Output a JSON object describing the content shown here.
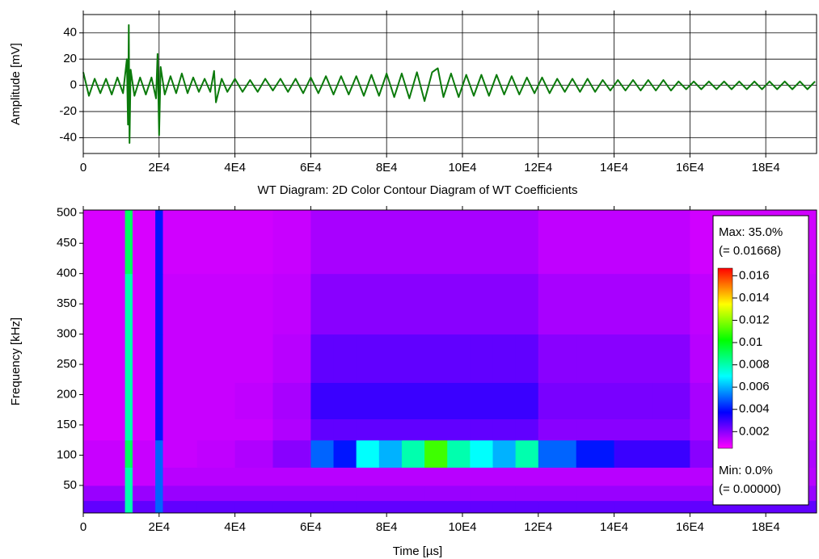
{
  "chart_data": [
    {
      "type": "line",
      "y_label": "Amplitude [mV]",
      "xlim": [
        0,
        193400
      ],
      "ylim": [
        -52,
        54
      ],
      "xticks": [
        0,
        {
          "value": 20000,
          "label": "2E4"
        },
        {
          "value": 40000,
          "label": "4E4"
        },
        {
          "value": 60000,
          "label": "6E4"
        },
        {
          "value": 80000,
          "label": "8E4"
        },
        {
          "value": 100000,
          "label": "10E4"
        },
        {
          "value": 120000,
          "label": "12E4"
        },
        {
          "value": 140000,
          "label": "14E4"
        },
        {
          "value": 160000,
          "label": "16E4"
        },
        {
          "value": 180000,
          "label": "18E4"
        }
      ],
      "yticks": [
        -40,
        -20,
        0,
        20,
        40
      ],
      "grid": true,
      "x": [
        0,
        1500,
        3000,
        4500,
        6000,
        7500,
        9000,
        10500,
        11500,
        11800,
        12000,
        12200,
        12500,
        13500,
        15000,
        16500,
        18000,
        19200,
        19600,
        20000,
        20400,
        21500,
        23000,
        24500,
        26000,
        27500,
        29000,
        30500,
        32000,
        33500,
        34500,
        35000,
        36500,
        38000,
        40000,
        42000,
        44000,
        46000,
        48000,
        50000,
        52000,
        54000,
        56000,
        58000,
        60000,
        62000,
        64000,
        66000,
        68000,
        70000,
        72000,
        74000,
        76000,
        78000,
        80000,
        82000,
        84000,
        86000,
        88000,
        90000,
        92000,
        93500,
        95000,
        97000,
        99000,
        101000,
        103000,
        105000,
        107000,
        109000,
        111000,
        113000,
        115000,
        117000,
        119000,
        121000,
        123000,
        125000,
        127000,
        129000,
        131000,
        133000,
        135000,
        137000,
        139000,
        141000,
        143000,
        145000,
        147000,
        149000,
        151000,
        153000,
        155000,
        157000,
        159000,
        161000,
        163000,
        165000,
        167000,
        169000,
        171000,
        173000,
        175000,
        177000,
        179000,
        181000,
        183000,
        185000,
        187000,
        189000,
        191000,
        193000
      ],
      "series": [
        {
          "color": "#0b7a0b",
          "values": [
            10,
            -8,
            5,
            -6,
            5,
            -7,
            6,
            -6,
            20,
            -30,
            46,
            -44,
            12,
            -8,
            6,
            -7,
            6,
            -10,
            24,
            -38,
            14,
            -7,
            7,
            -6,
            9,
            -6,
            6,
            -5,
            5,
            -5,
            11,
            -13,
            5,
            -5,
            5,
            -5,
            4,
            -5,
            5,
            -4,
            5,
            -5,
            5,
            -6,
            6,
            -6,
            7,
            -7,
            7,
            -7,
            7,
            -8,
            8,
            -8,
            9,
            -9,
            9,
            -10,
            10,
            -12,
            10,
            13,
            -9,
            9,
            -9,
            8,
            -8,
            8,
            -8,
            8,
            -7,
            7,
            -7,
            6,
            -6,
            6,
            -6,
            5,
            -5,
            5,
            -5,
            5,
            -5,
            4,
            -4,
            4,
            -4,
            4,
            -4,
            4,
            -4,
            4,
            -4,
            3,
            -3,
            3,
            -3,
            3,
            -3,
            3,
            -3,
            3,
            -3,
            3,
            -3,
            3,
            -3,
            3,
            -3,
            3,
            -3,
            3
          ]
        }
      ]
    },
    {
      "type": "heatmap",
      "title": "WT Diagram: 2D Color Contour Diagram of WT Coefficients",
      "x_label": "Time [µs]",
      "y_label": "Frequency [kHz]",
      "xlim": [
        0,
        193400
      ],
      "ylim": [
        4.5,
        505
      ],
      "xticks": [
        0,
        {
          "value": 20000,
          "label": "2E4"
        },
        {
          "value": 40000,
          "label": "4E4"
        },
        {
          "value": 60000,
          "label": "6E4"
        },
        {
          "value": 80000,
          "label": "8E4"
        },
        {
          "value": 100000,
          "label": "10E4"
        },
        {
          "value": 120000,
          "label": "12E4"
        },
        {
          "value": 140000,
          "label": "14E4"
        },
        {
          "value": 160000,
          "label": "16E4"
        },
        {
          "value": 180000,
          "label": "18E4"
        }
      ],
      "yticks": [
        50,
        100,
        150,
        200,
        250,
        300,
        350,
        400,
        450,
        500
      ],
      "grid": false,
      "x_edges": [
        0,
        11000,
        13000,
        19000,
        21000,
        30000,
        40000,
        50000,
        60000,
        66000,
        72000,
        78000,
        84000,
        90000,
        96000,
        102000,
        108000,
        114000,
        120000,
        130000,
        140000,
        150000,
        160000,
        175000,
        193400
      ],
      "y_edges": [
        4.5,
        25,
        50,
        80,
        125,
        160,
        220,
        300,
        400,
        505
      ],
      "z": [
        [
          0.0025,
          0.008,
          0.0025,
          0.005,
          0.0025,
          0.0025,
          0.0025,
          0.0025,
          0.0025,
          0.0025,
          0.0025,
          0.0025,
          0.0025,
          0.0025,
          0.0025,
          0.0025,
          0.0025,
          0.0025,
          0.0025,
          0.0025,
          0.0025,
          0.0025,
          0.0025,
          0.0025
        ],
        [
          0.0018,
          0.008,
          0.0018,
          0.005,
          0.0018,
          0.0018,
          0.0018,
          0.0018,
          0.0018,
          0.0018,
          0.0018,
          0.0018,
          0.0018,
          0.0018,
          0.0018,
          0.0018,
          0.0018,
          0.0018,
          0.0018,
          0.0018,
          0.0018,
          0.0018,
          0.0018,
          0.0018
        ],
        [
          0.0012,
          0.008,
          0.0012,
          0.005,
          0.0014,
          0.0014,
          0.0014,
          0.0014,
          0.0014,
          0.0014,
          0.0014,
          0.0014,
          0.0014,
          0.0014,
          0.0014,
          0.0014,
          0.0014,
          0.0014,
          0.0014,
          0.0014,
          0.0014,
          0.0014,
          0.0014,
          0.0014
        ],
        [
          0.0012,
          0.009,
          0.0012,
          0.005,
          0.0012,
          0.0013,
          0.0015,
          0.002,
          0.005,
          0.004,
          0.007,
          0.006,
          0.008,
          0.011,
          0.008,
          0.007,
          0.006,
          0.008,
          0.005,
          0.004,
          0.003,
          0.003,
          0.002,
          0.0015
        ],
        [
          0.001,
          0.008,
          0.001,
          0.004,
          0.0012,
          0.0012,
          0.0012,
          0.0015,
          0.0025,
          0.0025,
          0.0025,
          0.0025,
          0.0025,
          0.0025,
          0.0025,
          0.0025,
          0.0025,
          0.0025,
          0.002,
          0.002,
          0.002,
          0.002,
          0.0016,
          0.0012
        ],
        [
          0.001,
          0.008,
          0.001,
          0.004,
          0.0012,
          0.0012,
          0.0013,
          0.0016,
          0.003,
          0.003,
          0.003,
          0.003,
          0.003,
          0.003,
          0.003,
          0.003,
          0.003,
          0.003,
          0.0022,
          0.0022,
          0.0022,
          0.0022,
          0.0016,
          0.0012
        ],
        [
          0.001,
          0.008,
          0.001,
          0.004,
          0.0012,
          0.0012,
          0.0012,
          0.0014,
          0.0025,
          0.0025,
          0.0025,
          0.0025,
          0.0025,
          0.0025,
          0.0025,
          0.0025,
          0.0025,
          0.0025,
          0.002,
          0.002,
          0.002,
          0.002,
          0.0014,
          0.0012
        ],
        [
          0.001,
          0.008,
          0.001,
          0.004,
          0.0012,
          0.0012,
          0.0012,
          0.0013,
          0.002,
          0.002,
          0.002,
          0.002,
          0.002,
          0.002,
          0.002,
          0.002,
          0.002,
          0.002,
          0.0016,
          0.0016,
          0.0016,
          0.0016,
          0.0013,
          0.0012
        ],
        [
          0.001,
          0.009,
          0.001,
          0.004,
          0.0011,
          0.0011,
          0.0011,
          0.0012,
          0.0016,
          0.0016,
          0.0016,
          0.0016,
          0.0016,
          0.0016,
          0.0016,
          0.0016,
          0.0016,
          0.0016,
          0.0013,
          0.0013,
          0.0013,
          0.0013,
          0.0011,
          0.0011
        ]
      ],
      "zlim": [
        0.0005,
        0.01668
      ],
      "zticks": [
        0.002,
        0.004,
        0.006,
        0.008,
        0.01,
        0.012,
        0.014,
        0.016
      ],
      "colormap": [
        "#ff00ff",
        "#0000ff",
        "#00ffff",
        "#00ff00",
        "#ffff00",
        "#ff0000"
      ],
      "legend": {
        "max": "Max: 35.0%",
        "max_value": "(= 0.01668)",
        "min": "Min: 0.0%",
        "min_value": "(= 0.00000)"
      }
    }
  ]
}
